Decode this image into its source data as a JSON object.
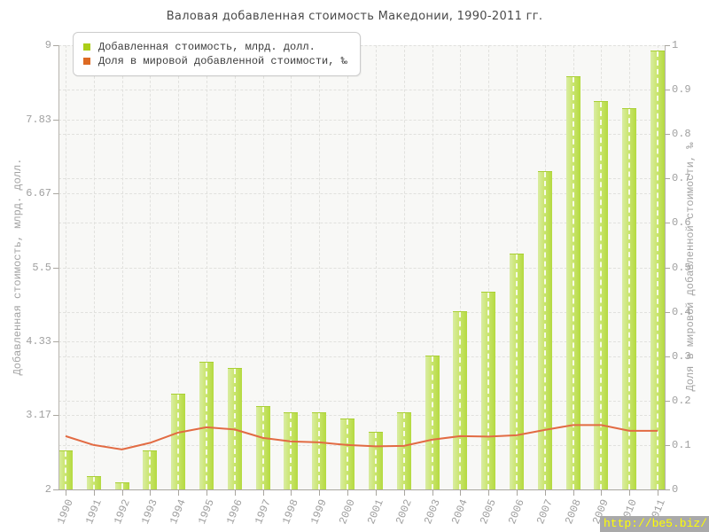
{
  "title": "Валовая добавленная стоимость Македонии, 1990-2011 гг.",
  "legend": {
    "items": [
      {
        "label": "Добавленная стоимость, млрд. долл.",
        "color": "#abce18"
      },
      {
        "label": "Доля в мировой добавленной стоимости, ‰",
        "color": "#dd6a23"
      }
    ]
  },
  "watermark": "http://be5.biz/",
  "chart_data": {
    "type": "bar",
    "title": "Валовая добавленная стоимость Македонии, 1990-2011 гг.",
    "categories": [
      1990,
      1991,
      1992,
      1993,
      1994,
      1995,
      1996,
      1997,
      1998,
      1999,
      2000,
      2001,
      2002,
      2003,
      2004,
      2005,
      2006,
      2007,
      2008,
      2009,
      2010,
      2011
    ],
    "series": [
      {
        "name": "Добавленная стоимость, млрд. долл.",
        "type": "bar",
        "axis": "left",
        "color": "#bfdf4e",
        "values": [
          2.6,
          2.2,
          2.1,
          2.6,
          3.5,
          4.0,
          3.9,
          3.3,
          3.2,
          3.2,
          3.1,
          2.9,
          3.2,
          4.1,
          4.8,
          5.1,
          5.7,
          7.0,
          8.5,
          8.1,
          8.0,
          8.9
        ]
      },
      {
        "name": "Доля в мировой добавленной стоимости, ‰",
        "type": "line",
        "axis": "right",
        "color": "#e26b43",
        "values": [
          0.12,
          0.1,
          0.09,
          0.105,
          0.128,
          0.14,
          0.135,
          0.116,
          0.108,
          0.106,
          0.1,
          0.097,
          0.098,
          0.112,
          0.12,
          0.119,
          0.122,
          0.134,
          0.145,
          0.145,
          0.132,
          0.132
        ]
      }
    ],
    "left_axis": {
      "label": "Добавленная стоимость, млрд. долл.",
      "min": 2,
      "max": 9,
      "ticks": [
        "2",
        "3.17",
        "4.33",
        "5.5",
        "6.67",
        "7.83",
        "9"
      ],
      "tick_values": [
        2,
        3.17,
        4.33,
        5.5,
        6.67,
        7.83,
        9
      ]
    },
    "right_axis": {
      "label": "Доля в мировой добавленной стоимости, ‰",
      "min": 0,
      "max": 1,
      "ticks": [
        "0",
        "0.1",
        "0.2",
        "0.3",
        "0.4",
        "0.5",
        "0.6",
        "0.7",
        "0.8",
        "0.9",
        "1"
      ],
      "tick_values": [
        0,
        0.1,
        0.2,
        0.3,
        0.4,
        0.5,
        0.6,
        0.7,
        0.8,
        0.9,
        1
      ]
    },
    "grid": true,
    "legend_position": "top-left"
  }
}
